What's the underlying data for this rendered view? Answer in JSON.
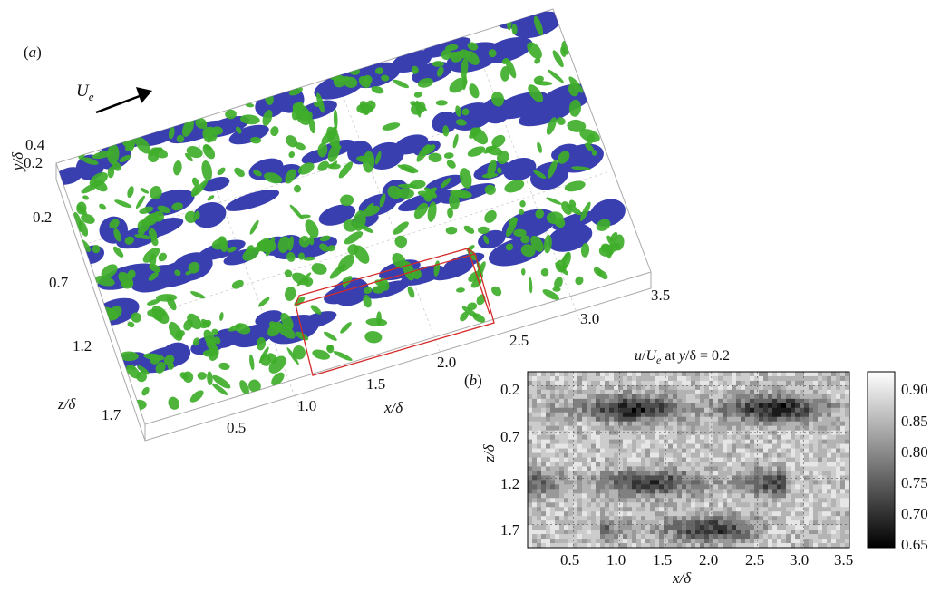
{
  "panel_a": {
    "label": "(a)",
    "flow_label": "U",
    "flow_sub": "e",
    "y_axis": "y/δ",
    "y_ticks": [
      "0.4",
      "0.2"
    ],
    "z_axis": "z/δ",
    "z_ticks": [
      "0.2",
      "0.7",
      "1.2",
      "1.7"
    ],
    "x_axis": "x/δ",
    "x_ticks": [
      "0.5",
      "1.0",
      "1.5",
      "2.0",
      "2.5",
      "3.0",
      "3.5"
    ],
    "colors": {
      "low_speed": "#3a3fb0",
      "vortex": "#3fae2a",
      "box": "#d42a2a"
    }
  },
  "panel_b": {
    "label": "(b)",
    "title": "u/U_e at y/δ = 0.2",
    "title_parts": {
      "u": "u",
      "slash": "/",
      "U": "U",
      "sub": "e",
      "at": " at ",
      "y": "y",
      "rest": "/δ = 0.2"
    },
    "chart_data": {
      "type": "heatmap",
      "title": "u/U_e at y/δ = 0.2",
      "xlabel": "x/δ",
      "ylabel": "z/δ",
      "x_ticks": [
        "0.5",
        "1.0",
        "1.5",
        "2.0",
        "2.5",
        "3.0",
        "3.5"
      ],
      "y_ticks": [
        "0.2",
        "0.7",
        "1.2",
        "1.7"
      ],
      "xlim": [
        0,
        3.5
      ],
      "ylim": [
        0.05,
        1.95
      ],
      "colorbar": {
        "ticks": [
          "0.90",
          "0.85",
          "0.80",
          "0.75",
          "0.70",
          "0.65"
        ],
        "range": [
          0.65,
          0.92
        ],
        "colormap": "gray"
      },
      "low_speed_streaks": [
        {
          "z": 0.45,
          "x_start": 0.2,
          "x_end": 3.5,
          "min_value": 0.66
        },
        {
          "z": 1.25,
          "x_start": 0.0,
          "x_end": 2.8,
          "min_value": 0.69
        },
        {
          "z": 1.75,
          "x_start": 0.8,
          "x_end": 2.6,
          "min_value": 0.7
        }
      ]
    }
  }
}
